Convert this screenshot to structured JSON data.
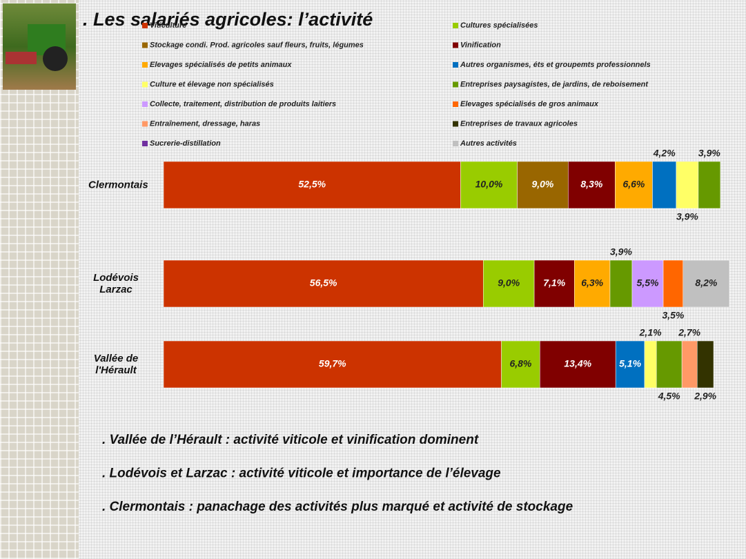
{
  "title": ". Les salariés agricoles: l’activité",
  "chart_data": {
    "type": "stacked-barh",
    "categories": [
      "Clermontais",
      "Lodévois Larzac",
      "Vallée de l'Hérault"
    ],
    "series": [
      {
        "name": "Viticulture",
        "color": "#cc3300",
        "values": [
          52.5,
          56.5,
          59.7
        ],
        "value_labels": [
          "52,5%",
          "56,5%",
          "59,7%"
        ]
      },
      {
        "name": "Cultures spécialisées",
        "color": "#99cc00",
        "values": [
          10.0,
          9.0,
          6.8
        ],
        "value_labels": [
          "10,0%",
          "9,0%",
          "6,8%"
        ]
      },
      {
        "name": "Stockage condi. Prod. agricoles sauf fleurs, fruits, légumes",
        "color": "#996600",
        "values": [
          9.0,
          null,
          null
        ],
        "value_labels": [
          "9,0%",
          null,
          null
        ]
      },
      {
        "name": "Vinification",
        "color": "#800000",
        "values": [
          8.3,
          7.1,
          13.4
        ],
        "value_labels": [
          "8,3%",
          "7,1%",
          "13,4%"
        ]
      },
      {
        "name": "Elevages spécialisés de petits animaux",
        "color": "#ffaa00",
        "values": [
          6.6,
          6.3,
          null
        ],
        "value_labels": [
          "6,6%",
          "6,3%",
          null
        ]
      },
      {
        "name": "Autres organismes, éts et groupemts professionnels",
        "color": "#0070c0",
        "values": [
          4.2,
          null,
          5.1
        ],
        "value_labels": [
          "4,2%",
          null,
          "5,1%"
        ]
      },
      {
        "name": "Culture et élevage non spécialisés",
        "color": "#ffff66",
        "values": [
          3.9,
          null,
          2.1
        ],
        "value_labels": [
          "3,9%",
          null,
          "2,1%"
        ]
      },
      {
        "name": "Entreprises paysagistes, de jardins, de reboisement",
        "color": "#669900",
        "values": [
          3.9,
          3.9,
          4.5
        ],
        "value_labels": [
          "3,9%",
          "3,9%",
          "4,5%"
        ]
      },
      {
        "name": "Collecte, traitement, distribution de produits laitiers",
        "color": "#cc99ff",
        "values": [
          null,
          5.5,
          null
        ],
        "value_labels": [
          null,
          "5,5%",
          null
        ]
      },
      {
        "name": "Elevages spécialisés de gros animaux",
        "color": "#ff6600",
        "values": [
          null,
          3.5,
          null
        ],
        "value_labels": [
          null,
          "3,5%",
          null
        ]
      },
      {
        "name": "Entraînement, dressage, haras",
        "color": "#ff9966",
        "values": [
          null,
          null,
          2.7
        ],
        "value_labels": [
          null,
          null,
          "2,7%"
        ]
      },
      {
        "name": "Entreprises de travaux agricoles",
        "color": "#333300",
        "values": [
          null,
          null,
          2.9
        ],
        "value_labels": [
          null,
          null,
          "2,9%"
        ]
      },
      {
        "name": "Sucrerie-distillation",
        "color": "#7030a0",
        "values": [
          null,
          null,
          null
        ],
        "value_labels": [
          null,
          null,
          null
        ]
      },
      {
        "name": "Autres activités",
        "color": "#c0c0c0",
        "values": [
          null,
          8.2,
          null
        ],
        "value_labels": [
          null,
          "8,2%",
          null
        ]
      }
    ]
  },
  "notes": [
    ". Vallée de l’Hérault : activité viticole et vinification dominent",
    ". Lodévois et Larzac : activité viticole et importance de l’élevage",
    ". Clermontais : panachage des activités plus marqué et activité de stockage"
  ]
}
